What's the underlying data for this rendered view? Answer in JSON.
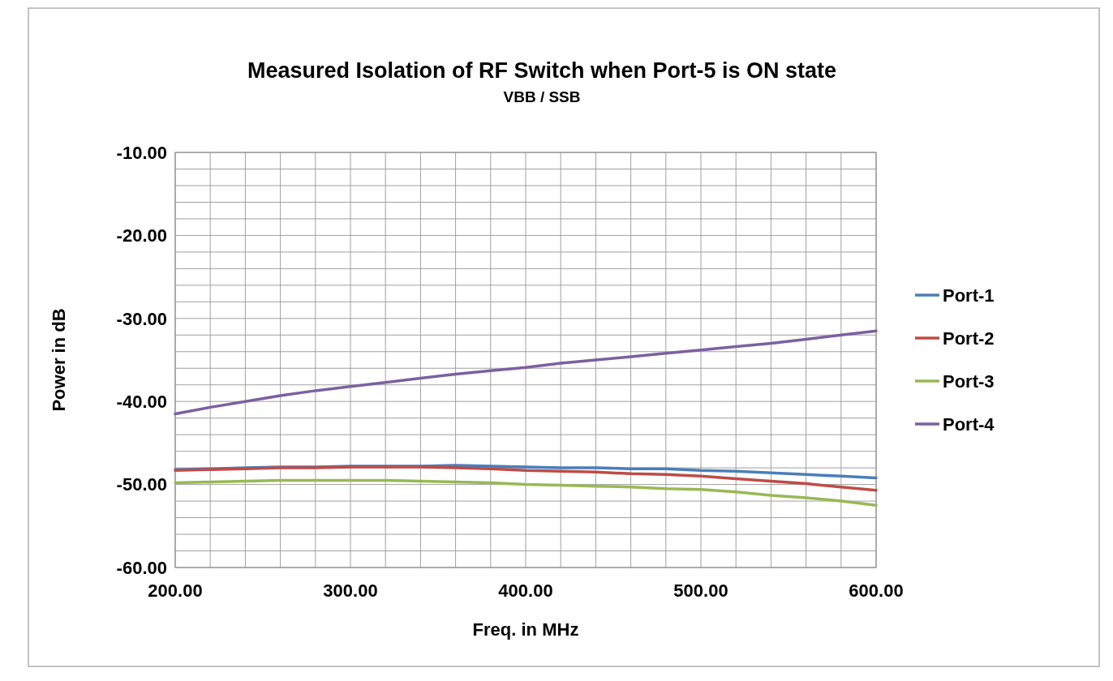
{
  "chart_data": {
    "type": "line",
    "title": "Measured Isolation of RF Switch when Port-5 is ON state",
    "subtitle": "VBB / SSB",
    "xlabel": "Freq. in MHz",
    "ylabel": "Power in dB",
    "x": [
      200,
      220,
      240,
      260,
      280,
      300,
      320,
      340,
      360,
      380,
      400,
      420,
      440,
      460,
      480,
      500,
      520,
      540,
      560,
      580,
      600
    ],
    "series": [
      {
        "name": "Port-1",
        "color": "#4a7ebb",
        "values": [
          -48.2,
          -48.1,
          -48.0,
          -47.9,
          -47.9,
          -47.8,
          -47.8,
          -47.8,
          -47.7,
          -47.8,
          -47.9,
          -48.0,
          -48.0,
          -48.1,
          -48.1,
          -48.3,
          -48.4,
          -48.6,
          -48.8,
          -49.0,
          -49.2
        ]
      },
      {
        "name": "Port-2",
        "color": "#be4b48",
        "values": [
          -48.3,
          -48.2,
          -48.1,
          -48.0,
          -48.0,
          -47.9,
          -47.9,
          -47.9,
          -48.0,
          -48.1,
          -48.3,
          -48.4,
          -48.5,
          -48.7,
          -48.8,
          -49.0,
          -49.3,
          -49.6,
          -49.9,
          -50.3,
          -50.7
        ]
      },
      {
        "name": "Port-3",
        "color": "#98b954",
        "values": [
          -49.8,
          -49.7,
          -49.6,
          -49.5,
          -49.5,
          -49.5,
          -49.5,
          -49.6,
          -49.7,
          -49.8,
          -50.0,
          -50.1,
          -50.2,
          -50.3,
          -50.5,
          -50.6,
          -50.9,
          -51.3,
          -51.6,
          -52.0,
          -52.5
        ]
      },
      {
        "name": "Port-4",
        "color": "#7d60a0",
        "values": [
          -41.5,
          -40.7,
          -40.0,
          -39.3,
          -38.7,
          -38.2,
          -37.7,
          -37.2,
          -36.7,
          -36.3,
          -35.9,
          -35.4,
          -35.0,
          -34.6,
          -34.2,
          -33.8,
          -33.4,
          -33.0,
          -32.5,
          -32.0,
          -31.5
        ]
      }
    ],
    "xlim": [
      200,
      600
    ],
    "xticks": [
      {
        "value": 200,
        "label": "200.00"
      },
      {
        "value": 220,
        "label": null
      },
      {
        "value": 240,
        "label": null
      },
      {
        "value": 260,
        "label": null
      },
      {
        "value": 280,
        "label": null
      },
      {
        "value": 300,
        "label": "300.00"
      },
      {
        "value": 320,
        "label": null
      },
      {
        "value": 340,
        "label": null
      },
      {
        "value": 360,
        "label": null
      },
      {
        "value": 380,
        "label": null
      },
      {
        "value": 400,
        "label": "400.00"
      },
      {
        "value": 420,
        "label": null
      },
      {
        "value": 440,
        "label": null
      },
      {
        "value": 460,
        "label": null
      },
      {
        "value": 480,
        "label": null
      },
      {
        "value": 500,
        "label": "500.00"
      },
      {
        "value": 520,
        "label": null
      },
      {
        "value": 540,
        "label": null
      },
      {
        "value": 560,
        "label": null
      },
      {
        "value": 580,
        "label": null
      },
      {
        "value": 600,
        "label": "600.00"
      }
    ],
    "ylim": [
      -60,
      -10
    ],
    "yticks": [
      {
        "value": -60,
        "label": "-60.00"
      },
      {
        "value": -58,
        "label": null
      },
      {
        "value": -56,
        "label": null
      },
      {
        "value": -54,
        "label": null
      },
      {
        "value": -52,
        "label": null
      },
      {
        "value": -50,
        "label": "-50.00"
      },
      {
        "value": -48,
        "label": null
      },
      {
        "value": -46,
        "label": null
      },
      {
        "value": -44,
        "label": null
      },
      {
        "value": -42,
        "label": null
      },
      {
        "value": -40,
        "label": "-40.00"
      },
      {
        "value": -38,
        "label": null
      },
      {
        "value": -36,
        "label": null
      },
      {
        "value": -34,
        "label": null
      },
      {
        "value": -32,
        "label": null
      },
      {
        "value": -30,
        "label": "-30.00"
      },
      {
        "value": -28,
        "label": null
      },
      {
        "value": -26,
        "label": null
      },
      {
        "value": -24,
        "label": null
      },
      {
        "value": -22,
        "label": null
      },
      {
        "value": -20,
        "label": "-20.00"
      },
      {
        "value": -18,
        "label": null
      },
      {
        "value": -16,
        "label": null
      },
      {
        "value": -14,
        "label": null
      },
      {
        "value": -12,
        "label": null
      },
      {
        "value": -10,
        "label": "-10.00"
      }
    ],
    "grid": true,
    "legend": "right",
    "marker": "none",
    "line_style": "solid"
  }
}
